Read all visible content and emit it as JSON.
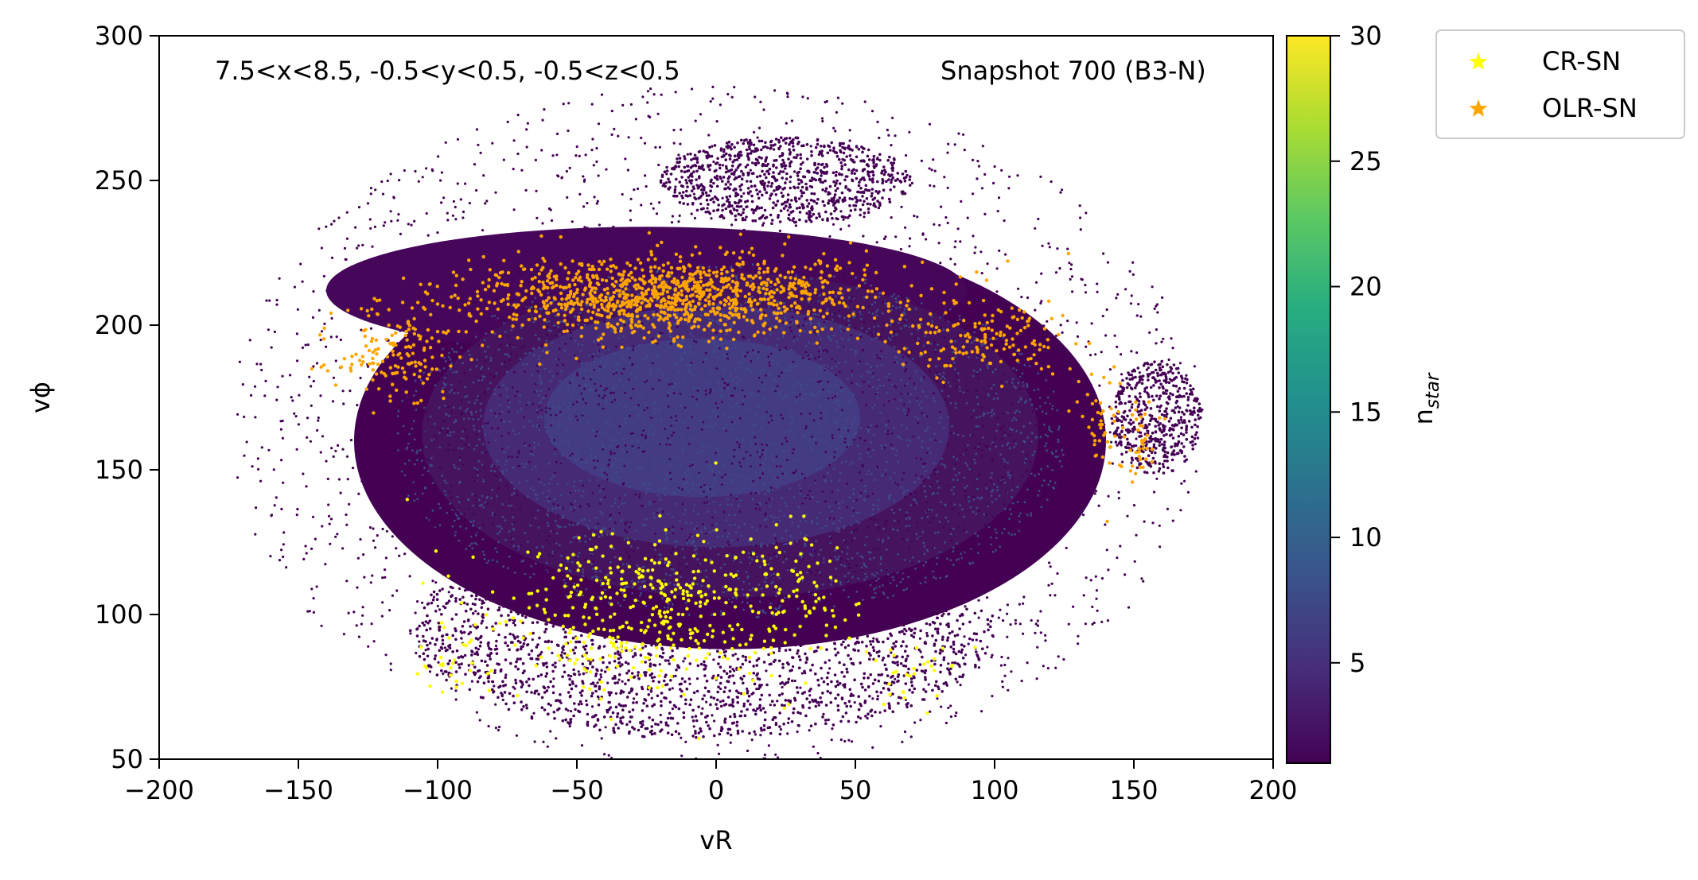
{
  "chart_data": {
    "type": "scatter",
    "title": "",
    "xlabel": "vR",
    "ylabel": "vϕ",
    "xlim": [
      -200,
      200
    ],
    "ylim": [
      50,
      300
    ],
    "x_ticks": [
      -200,
      -150,
      -100,
      -50,
      0,
      50,
      100,
      150,
      200
    ],
    "x_tick_labels": [
      "−200",
      "−150",
      "−100",
      "−50",
      "0",
      "50",
      "100",
      "150",
      "200"
    ],
    "y_ticks": [
      50,
      100,
      150,
      200,
      250,
      300
    ],
    "grid": false,
    "annotations": {
      "region": "7.5<x<8.5, -0.5<y<0.5, -0.5<z<0.5",
      "snapshot": "Snapshot 700 (B3-N)"
    },
    "colorbar": {
      "label_main": "n",
      "label_sub": "star",
      "cmap": "viridis",
      "range": [
        1,
        30
      ],
      "ticks": [
        5,
        10,
        15,
        20,
        25,
        30
      ]
    },
    "legend": {
      "position": "outside-top-right",
      "entries": [
        {
          "name": "CR-SN",
          "color": "#ffff00",
          "marker": "star"
        },
        {
          "name": "OLR-SN",
          "color": "#ffa500",
          "marker": "star"
        }
      ]
    },
    "background_density": {
      "description_values": "density-coloured particle distribution in (vR, vphi)",
      "main_ellipse": {
        "center": [
          5,
          160
        ],
        "semi_axes": [
          135,
          72
        ]
      },
      "upper_arch": {
        "center": [
          -25,
          212
        ],
        "semi_axes": [
          115,
          22
        ]
      },
      "top_cap": {
        "center": [
          25,
          250
        ],
        "semi_axes": [
          45,
          15
        ]
      },
      "lower_region": {
        "center": [
          -5,
          95
        ],
        "semi_axes": [
          105,
          38
        ]
      },
      "right_lobe": {
        "center": [
          158,
          168
        ],
        "semi_axes": [
          16,
          20
        ]
      }
    },
    "series": [
      {
        "name": "CR-SN",
        "color": "#ffff00",
        "clusters": [
          {
            "center": [
              -25,
              102
            ],
            "spread": [
              28,
              14
            ],
            "count": 430
          },
          {
            "center": [
              30,
              108
            ],
            "spread": [
              12,
              10
            ],
            "count": 60
          },
          {
            "center": [
              -95,
              83
            ],
            "spread": [
              6,
              6
            ],
            "count": 25
          },
          {
            "center": [
              72,
              82
            ],
            "spread": [
              12,
              6
            ],
            "count": 30
          }
        ]
      },
      {
        "name": "OLR-SN",
        "color": "#ffa500",
        "clusters": [
          {
            "center": [
              -20,
              210
            ],
            "spread": [
              38,
              7
            ],
            "count": 1150
          },
          {
            "center": [
              -115,
              190
            ],
            "spread": [
              10,
              8
            ],
            "count": 150
          },
          {
            "center": [
              95,
              195
            ],
            "spread": [
              14,
              7
            ],
            "count": 150
          },
          {
            "center": [
              138,
              168
            ],
            "spread": [
              4,
              8
            ],
            "count": 40
          },
          {
            "center": [
              150,
              160
            ],
            "spread": [
              4,
              7
            ],
            "count": 40
          }
        ]
      }
    ]
  }
}
